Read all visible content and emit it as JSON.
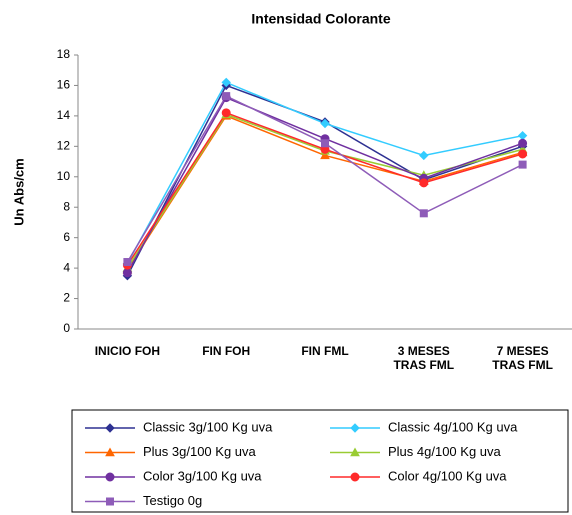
{
  "chart_data": {
    "type": "line",
    "title": "Intensidad Colorante",
    "y_label": "Un Abs/cm",
    "categories": [
      "INICIO FOH",
      "FIN FOH",
      "FIN FML",
      "3 MESES TRAS FML",
      "7 MESES TRAS FML"
    ],
    "series": [
      {
        "name": "Classic 3g/100 Kg uva",
        "color": "#2e3192",
        "marker": "diamond",
        "values": [
          3.5,
          16.0,
          13.6,
          9.8,
          12.0
        ]
      },
      {
        "name": "Classic 4g/100 Kg uva",
        "color": "#33ccff",
        "marker": "diamond",
        "values": [
          4.3,
          16.2,
          13.5,
          11.4,
          12.7
        ]
      },
      {
        "name": "Plus 3g/100 Kg uva",
        "color": "#ff6600",
        "marker": "triangle",
        "values": [
          3.9,
          14.0,
          11.4,
          9.7,
          11.6
        ]
      },
      {
        "name": "Plus 4g/100 Kg uva",
        "color": "#99cc33",
        "marker": "triangle",
        "values": [
          4.0,
          14.1,
          11.7,
          10.1,
          11.8
        ]
      },
      {
        "name": "Color 3g/100 Kg uva",
        "color": "#7030a0",
        "marker": "circle",
        "values": [
          3.7,
          15.2,
          12.5,
          9.9,
          12.2
        ]
      },
      {
        "name": "Color 4g/100 Kg uva",
        "color": "#ff2a2a",
        "marker": "circle",
        "values": [
          4.2,
          14.2,
          11.8,
          9.6,
          11.5
        ]
      },
      {
        "name": "Testigo 0g",
        "color": "#8e5cb8",
        "marker": "square",
        "values": [
          4.4,
          15.3,
          12.2,
          7.6,
          10.8
        ]
      }
    ],
    "ylim": [
      0,
      18
    ],
    "yticks": [
      0,
      2,
      4,
      6,
      8,
      10,
      12,
      14,
      16,
      18
    ],
    "grid": false,
    "legend": "bottom"
  }
}
